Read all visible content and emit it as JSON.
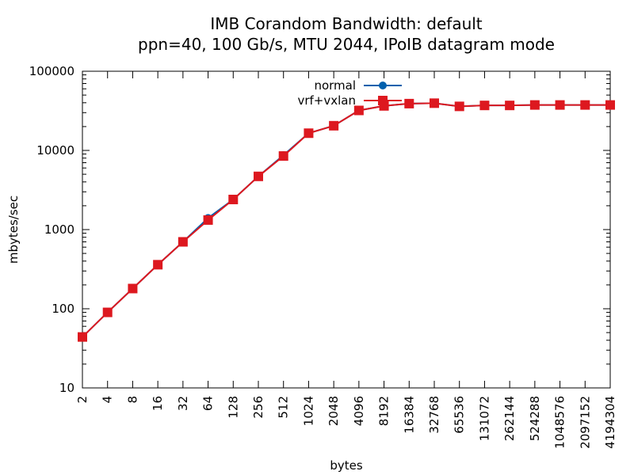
{
  "chart_data": {
    "type": "line",
    "title": "IMB Corandom Bandwidth: default",
    "subtitle": "ppn=40, 100 Gb/s, MTU 2044, IPoIB datagram mode",
    "xlabel": "bytes",
    "ylabel": "mbytes/sec",
    "x_scale": "log2",
    "y_scale": "log10",
    "xlim": [
      2,
      4194304
    ],
    "ylim": [
      10,
      100000
    ],
    "grid": false,
    "legend_position": "top-center",
    "x_ticks": [
      "2",
      "4",
      "8",
      "16",
      "32",
      "64",
      "128",
      "256",
      "512",
      "1024",
      "2048",
      "4096",
      "8192",
      "16384",
      "32768",
      "65536",
      "131072",
      "262144",
      "524288",
      "1048576",
      "2097152",
      "4194304"
    ],
    "y_ticks": [
      "10",
      "100",
      "1000",
      "10000",
      "100000"
    ],
    "x": [
      2,
      4,
      8,
      16,
      32,
      64,
      128,
      256,
      512,
      1024,
      2048,
      4096,
      8192,
      16384,
      32768,
      65536,
      131072,
      262144,
      524288,
      1048576,
      2097152,
      4194304
    ],
    "series": [
      {
        "name": "normal",
        "color": "#0060ad",
        "marker": "circle",
        "values": [
          44,
          90,
          180,
          360,
          700,
          1400,
          2400,
          4700,
          8700,
          16500,
          20500,
          32000,
          36500,
          39000,
          39500,
          36000,
          37000,
          37000,
          37500,
          37500,
          37500,
          37500
        ]
      },
      {
        "name": "vrf+vxlan",
        "color": "#dd181f",
        "marker": "square",
        "values": [
          44,
          90,
          180,
          360,
          700,
          1320,
          2400,
          4700,
          8500,
          16500,
          20500,
          32000,
          36500,
          39000,
          39500,
          36000,
          37000,
          37000,
          37500,
          37500,
          37500,
          37500
        ]
      }
    ]
  }
}
